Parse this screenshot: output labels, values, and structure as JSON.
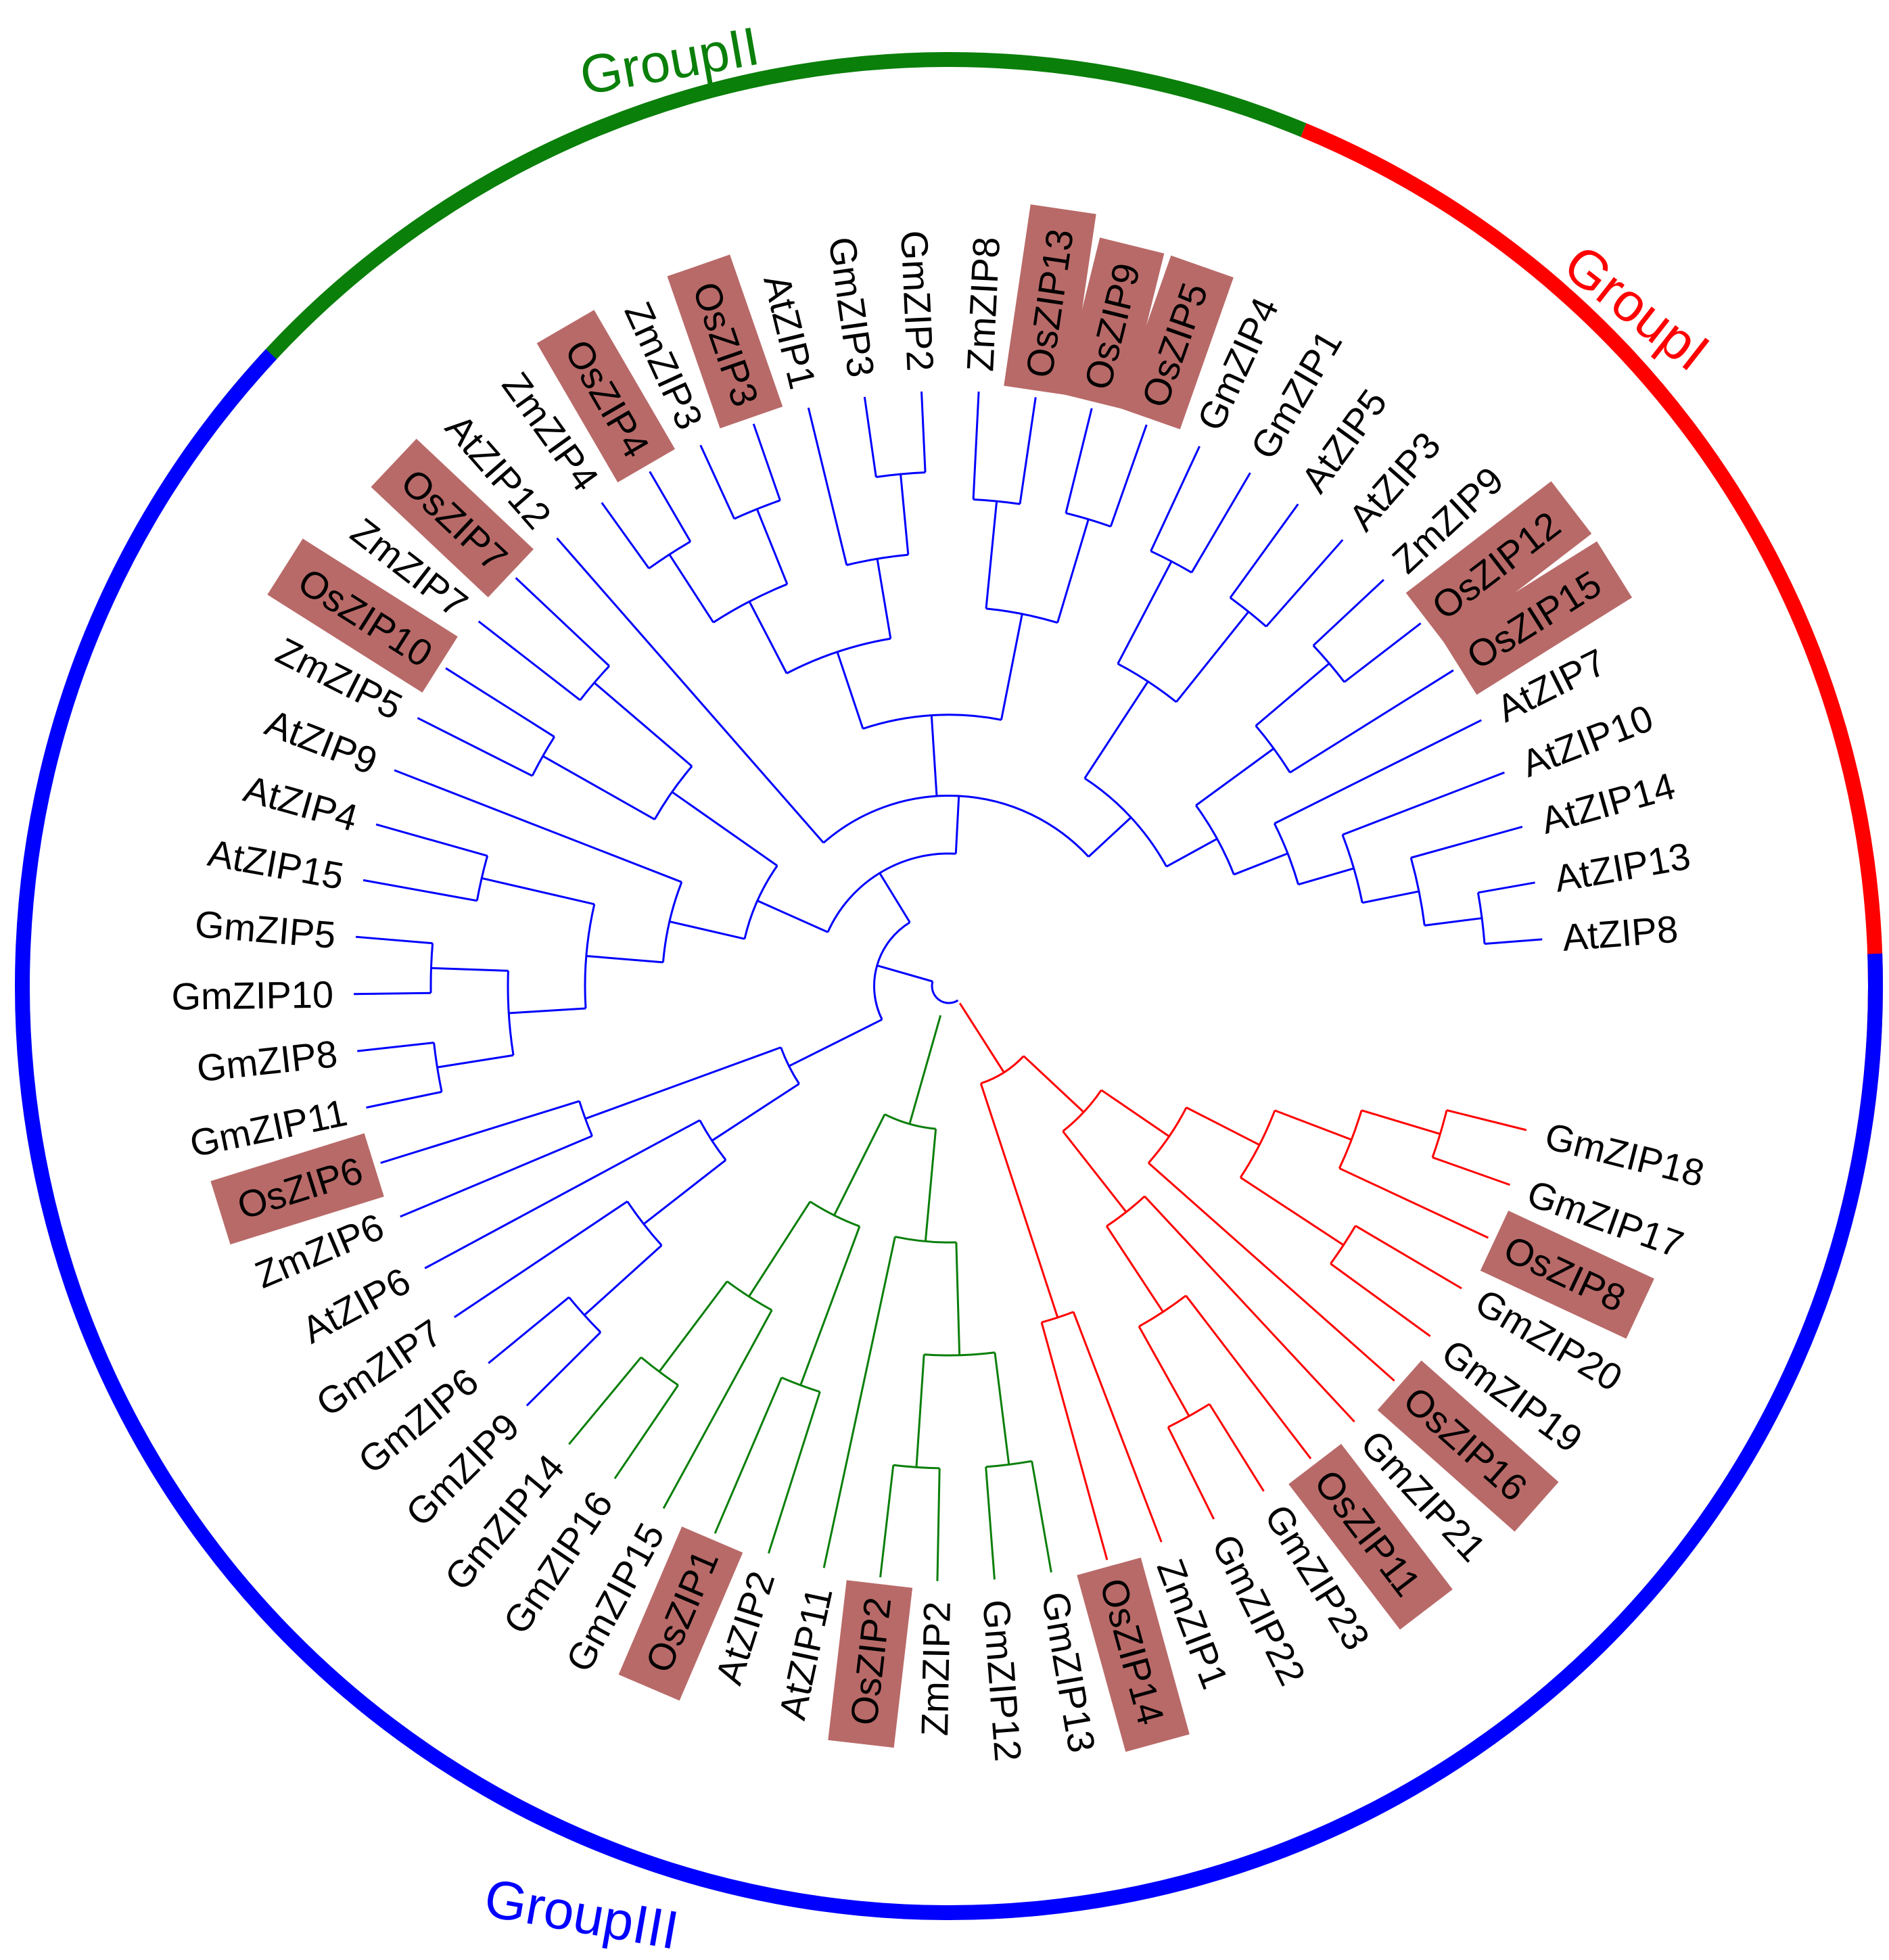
{
  "figure": {
    "type": "circular-phylogenetic-tree",
    "highlight_color": "#b86a68",
    "highlight_prefix": "Os"
  },
  "groups": [
    {
      "id": "g1",
      "label": "GroupI",
      "color": "#ff0000"
    },
    {
      "id": "g2",
      "label": "GroupII",
      "color": "#0a7f0a"
    },
    {
      "id": "g3",
      "label": "GroupIII",
      "color": "#0000ff"
    }
  ],
  "leaves": [
    "GmZIP18",
    "GmZIP17",
    "OsZIP8",
    "GmZIP20",
    "GmZIP19",
    "OsZIP16",
    "GmZIP21",
    "OsZIP11",
    "GmZIP23",
    "GmZIP22",
    "ZmZIP1",
    "OsZIP14",
    "GmZIP13",
    "GmZIP12",
    "ZmZIP2",
    "OsZIP2",
    "AtZIP11",
    "AtZIP2",
    "OsZIP1",
    "GmZIP15",
    "GmZIP16",
    "GmZIP14",
    "GmZIP9",
    "GmZIP6",
    "GmZIP7",
    "AtZIP6",
    "ZmZIP6",
    "OsZIP6",
    "GmZIP11",
    "GmZIP8",
    "GmZIP10",
    "GmZIP5",
    "AtZIP15",
    "AtZIP4",
    "AtZIP9",
    "ZmZIP5",
    "OsZIP10",
    "ZmZIP7",
    "OsZIP7",
    "AtZIP12",
    "ZmZIP4",
    "OsZIP4",
    "ZmZIP3",
    "OsZIP3",
    "AtZIP1",
    "GmZIP3",
    "GmZIP2",
    "ZmZIP8",
    "OsZIP13",
    "OsZIP9",
    "OsZIP5",
    "GmZIP4",
    "GmZIP1",
    "AtZIP5",
    "AtZIP3",
    "ZmZIP9",
    "OsZIP12",
    "OsZIP15",
    "AtZIP7",
    "AtZIP10",
    "AtZIP14",
    "AtZIP13",
    "AtZIP8"
  ],
  "tree": {
    "name": "root",
    "children": [
      {
        "name": "GroupI",
        "group": "g1",
        "children": [
          {
            "children": [
              {
                "leaf": "ZmZIP1"
              },
              {
                "leaf": "OsZIP14"
              }
            ]
          },
          {
            "children": [
              {
                "children": [
                  {
                    "children": [
                      {
                        "children": [
                          {
                            "leaf": "GmZIP23"
                          },
                          {
                            "leaf": "GmZIP22"
                          }
                        ]
                      },
                      {
                        "leaf": "OsZIP11"
                      }
                    ]
                  },
                  {
                    "leaf": "GmZIP21"
                  }
                ]
              },
              {
                "children": [
                  {
                    "leaf": "OsZIP16"
                  },
                  {
                    "children": [
                      {
                        "children": [
                          {
                            "leaf": "GmZIP20"
                          },
                          {
                            "leaf": "GmZIP19"
                          }
                        ]
                      },
                      {
                        "children": [
                          {
                            "leaf": "OsZIP8"
                          },
                          {
                            "children": [
                              {
                                "leaf": "GmZIP18"
                              },
                              {
                                "leaf": "GmZIP17"
                              }
                            ]
                          }
                        ]
                      }
                    ]
                  }
                ]
              }
            ]
          }
        ]
      },
      {
        "name": "GroupII",
        "group": "g2",
        "children": [
          {
            "children": [
              {
                "children": [
                  {
                    "children": [
                      {
                        "leaf": "GmZIP13"
                      },
                      {
                        "leaf": "GmZIP12"
                      }
                    ]
                  },
                  {
                    "children": [
                      {
                        "leaf": "ZmZIP2"
                      },
                      {
                        "leaf": "OsZIP2"
                      }
                    ]
                  }
                ]
              },
              {
                "leaf": "AtZIP11"
              }
            ]
          },
          {
            "children": [
              {
                "children": [
                  {
                    "leaf": "AtZIP2"
                  },
                  {
                    "leaf": "OsZIP1"
                  }
                ]
              },
              {
                "children": [
                  {
                    "leaf": "GmZIP15"
                  },
                  {
                    "children": [
                      {
                        "leaf": "GmZIP16"
                      },
                      {
                        "leaf": "GmZIP14"
                      }
                    ]
                  }
                ]
              }
            ]
          }
        ]
      },
      {
        "name": "GroupIII",
        "group": "g3",
        "children": [
          {
            "children": [
              {
                "children": [
                  {
                    "children": [
                      {
                        "children": [
                          {
                            "leaf": "GmZIP9"
                          },
                          {
                            "leaf": "GmZIP6"
                          }
                        ]
                      },
                      {
                        "leaf": "GmZIP7"
                      }
                    ]
                  },
                  {
                    "leaf": "AtZIP6"
                  }
                ]
              },
              {
                "children": [
                  {
                    "leaf": "ZmZIP6"
                  },
                  {
                    "leaf": "OsZIP6"
                  }
                ]
              }
            ]
          },
          {
            "children": [
              {
                "children": [
                  {
                    "children": [
                      {
                        "children": [
                          {
                            "children": [
                              {
                                "children": [
                                  {
                                    "leaf": "GmZIP11"
                                  },
                                  {
                                    "leaf": "GmZIP8"
                                  }
                                ]
                              },
                              {
                                "children": [
                                  {
                                    "leaf": "GmZIP10"
                                  },
                                  {
                                    "leaf": "GmZIP5"
                                  }
                                ]
                              }
                            ]
                          },
                          {
                            "children": [
                              {
                                "leaf": "AtZIP15"
                              },
                              {
                                "leaf": "AtZIP4"
                              }
                            ]
                          }
                        ]
                      },
                      {
                        "leaf": "AtZIP9"
                      }
                    ]
                  },
                  {
                    "children": [
                      {
                        "children": [
                          {
                            "leaf": "ZmZIP5"
                          },
                          {
                            "leaf": "OsZIP10"
                          }
                        ]
                      },
                      {
                        "children": [
                          {
                            "leaf": "ZmZIP7"
                          },
                          {
                            "leaf": "OsZIP7"
                          }
                        ]
                      }
                    ]
                  }
                ]
              },
              {
                "children": [
                  {
                    "leaf": "AtZIP12"
                  },
                  {
                    "children": [
                      {
                        "children": [
                          {
                            "children": [
                              {
                                "children": [
                                  {
                                    "leaf": "ZmZIP4"
                                  },
                                  {
                                    "leaf": "OsZIP4"
                                  }
                                ]
                              },
                              {
                                "children": [
                                  {
                                    "leaf": "ZmZIP3"
                                  },
                                  {
                                    "leaf": "OsZIP3"
                                  }
                                ]
                              }
                            ]
                          },
                          {
                            "children": [
                              {
                                "leaf": "AtZIP1"
                              },
                              {
                                "children": [
                                  {
                                    "leaf": "GmZIP3"
                                  },
                                  {
                                    "leaf": "GmZIP2"
                                  }
                                ]
                              }
                            ]
                          }
                        ]
                      },
                      {
                        "children": [
                          {
                            "children": [
                              {
                                "leaf": "ZmZIP8"
                              },
                              {
                                "leaf": "OsZIP13"
                              }
                            ]
                          },
                          {
                            "children": [
                              {
                                "leaf": "OsZIP9"
                              },
                              {
                                "leaf": "OsZIP5"
                              }
                            ]
                          }
                        ]
                      }
                    ]
                  },
                  {
                    "children": [
                      {
                        "children": [
                          {
                            "children": [
                              {
                                "leaf": "GmZIP4"
                              },
                              {
                                "leaf": "GmZIP1"
                              }
                            ]
                          },
                          {
                            "children": [
                              {
                                "leaf": "AtZIP5"
                              },
                              {
                                "leaf": "AtZIP3"
                              }
                            ]
                          }
                        ]
                      },
                      {
                        "children": [
                          {
                            "children": [
                              {
                                "children": [
                                  {
                                    "leaf": "ZmZIP9"
                                  },
                                  {
                                    "leaf": "OsZIP12"
                                  }
                                ]
                              },
                              {
                                "leaf": "OsZIP15"
                              }
                            ]
                          },
                          {
                            "children": [
                              {
                                "leaf": "AtZIP7"
                              },
                              {
                                "children": [
                                  {
                                    "leaf": "AtZIP10"
                                  },
                                  {
                                    "children": [
                                      {
                                        "leaf": "AtZIP14"
                                      },
                                      {
                                        "children": [
                                          {
                                            "leaf": "AtZIP13"
                                          },
                                          {
                                            "leaf": "AtZIP8"
                                          }
                                        ]
                                      }
                                    ]
                                  }
                                ]
                              }
                            ]
                          }
                        ]
                      }
                    ]
                  }
                ]
              }
            ]
          }
        ]
      }
    ]
  }
}
